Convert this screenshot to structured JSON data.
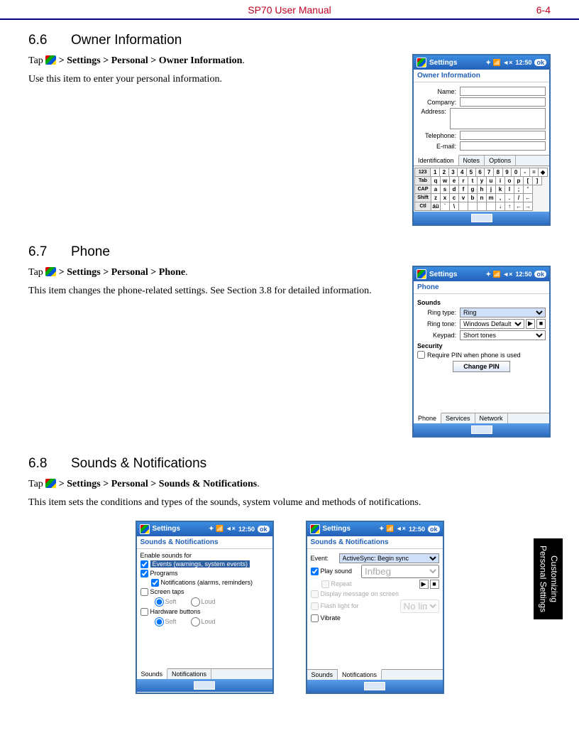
{
  "header": {
    "title": "SP70 User Manual",
    "page": "6-4"
  },
  "side_tab": {
    "line1": "Customizing",
    "line2": "Personal Settings"
  },
  "colors": {
    "header_text": "#c00020",
    "rule": "#000080",
    "titlebar_start": "#3a8de0",
    "titlebar_end": "#2360b8"
  },
  "s66": {
    "num": "6.6",
    "title": "Owner Information",
    "tap_prefix": "Tap",
    "path": " > Settings > Personal > Owner Information",
    "period": ".",
    "desc": "Use this item to enter your personal information.",
    "device": {
      "titlebar": "Settings",
      "time": "12:50",
      "ok": "ok",
      "subtitle": "Owner Information",
      "fields": {
        "name": "Name:",
        "company": "Company:",
        "address": "Address:",
        "telephone": "Telephone:",
        "email": "E-mail:"
      },
      "tabs": [
        "Identification",
        "Notes",
        "Options"
      ],
      "kbd": {
        "r1": [
          "123",
          "1",
          "2",
          "3",
          "4",
          "5",
          "6",
          "7",
          "8",
          "9",
          "0",
          "-",
          "=",
          "◆"
        ],
        "r2": [
          "Tab",
          "q",
          "w",
          "e",
          "r",
          "t",
          "y",
          "u",
          "i",
          "o",
          "p",
          "[",
          "]"
        ],
        "r3": [
          "CAP",
          "a",
          "s",
          "d",
          "f",
          "g",
          "h",
          "j",
          "k",
          "l",
          ";",
          "'"
        ],
        "r4": [
          "Shift",
          "z",
          "x",
          "c",
          "v",
          "b",
          "n",
          "m",
          ",",
          ".",
          "/",
          "←"
        ],
        "r5": [
          "Ctl",
          "áü",
          "`",
          "\\",
          " ",
          " ",
          " ",
          " ",
          "↓",
          "↑",
          "←",
          "→"
        ]
      }
    }
  },
  "s67": {
    "num": "6.7",
    "title": "Phone",
    "tap_prefix": "Tap",
    "path": " > Settings > Personal > Phone",
    "period": ".",
    "desc": "This item changes the phone-related settings. See Section 3.8 for detailed information.",
    "device": {
      "titlebar": "Settings",
      "time": "12:50",
      "ok": "ok",
      "subtitle": "Phone",
      "sounds_label": "Sounds",
      "ring_type": "Ring type:",
      "ring_type_val": "Ring",
      "ring_tone": "Ring tone:",
      "ring_tone_val": "Windows Default",
      "keypad": "Keypad:",
      "keypad_val": "Short tones",
      "security_label": "Security",
      "require_pin": "Require PIN when phone is used",
      "change_pin": "Change PIN",
      "tabs": [
        "Phone",
        "Services",
        "Network"
      ]
    }
  },
  "s68": {
    "num": "6.8",
    "title": "Sounds & Notifications",
    "tap_prefix": "Tap",
    "path": " > Settings > Personal > Sounds & Notifications",
    "period": ".",
    "desc": "This item sets the conditions and types of the sounds, system volume and methods of notifications.",
    "dev1": {
      "titlebar": "Settings",
      "time": "12:50",
      "ok": "ok",
      "subtitle": "Sounds & Notifications",
      "enable": "Enable sounds for",
      "events": "Events (warnings, system events)",
      "programs": "Programs",
      "notif": "Notifications (alarms, reminders)",
      "taps": "Screen taps",
      "buttons": "Hardware buttons",
      "soft": "Soft",
      "loud": "Loud",
      "tabs": [
        "Sounds",
        "Notifications"
      ]
    },
    "dev2": {
      "titlebar": "Settings",
      "time": "12:50",
      "ok": "ok",
      "subtitle": "Sounds & Notifications",
      "event": "Event:",
      "event_val": "ActiveSync: Begin sync",
      "play_sound": "Play sound",
      "play_val": "Infbeg",
      "repeat": "Repeat",
      "display_msg": "Display message on screen",
      "flash": "Flash light for",
      "flash_val": "No limit",
      "vibrate": "Vibrate",
      "tabs": [
        "Sounds",
        "Notifications"
      ]
    }
  }
}
